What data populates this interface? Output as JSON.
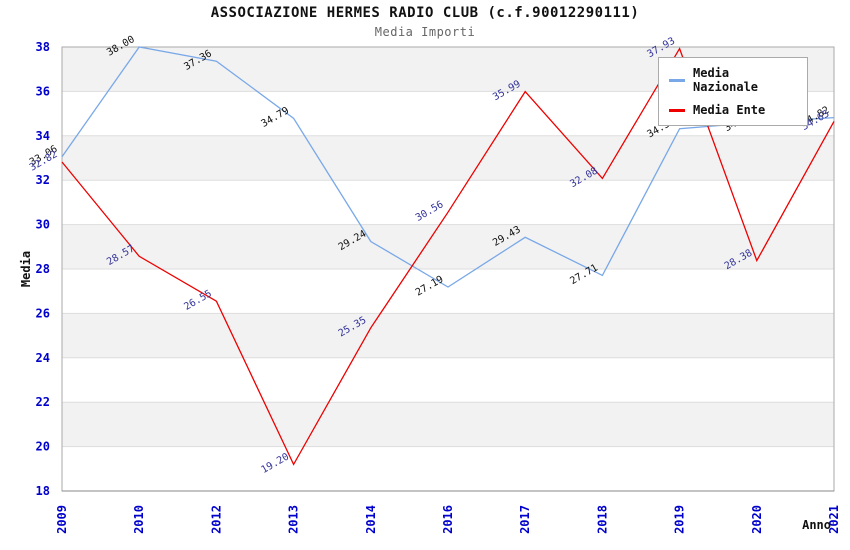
{
  "header": {
    "title": "ASSOCIAZIONE HERMES RADIO CLUB (c.f.90012290111)",
    "subtitle": "Media Importi"
  },
  "legend": {
    "position": "top-right",
    "items": [
      {
        "label": "Media Nazionale",
        "color": "#79a8e8"
      },
      {
        "label": "Media Ente",
        "color": "#ee0000"
      }
    ]
  },
  "chart_data": {
    "type": "line",
    "title": "ASSOCIAZIONE HERMES RADIO CLUB (c.f.90012290111)",
    "subtitle": "Media Importi",
    "xlabel": "Anno",
    "ylabel": "Media",
    "ylim": [
      18,
      38
    ],
    "ytick_step": 2,
    "yticks": [
      18,
      20,
      22,
      24,
      26,
      28,
      30,
      32,
      34,
      36,
      38
    ],
    "grid": "horizontal-bands",
    "categories": [
      "2009",
      "2010",
      "2012",
      "2013",
      "2014",
      "2016",
      "2017",
      "2018",
      "2019",
      "2020",
      "2021"
    ],
    "series": [
      {
        "name": "Media Nazionale",
        "color": "#79a8e8",
        "label_color": "#111111",
        "values": [
          33.06,
          38.0,
          37.36,
          34.79,
          29.24,
          27.19,
          29.43,
          27.71,
          34.32,
          34.6,
          34.82
        ]
      },
      {
        "name": "Media Ente",
        "color": "#ee0000",
        "label_color": "#333399",
        "values": [
          32.82,
          28.57,
          26.55,
          19.2,
          25.35,
          30.56,
          35.99,
          32.08,
          37.93,
          28.38,
          34.65
        ]
      }
    ],
    "colors": {
      "tick_label": "#0000cc",
      "axis_title": "#111111",
      "band_fill": "#f2f2f2",
      "gridline": "#dddddd",
      "plot_border": "#aaaaaa"
    }
  }
}
